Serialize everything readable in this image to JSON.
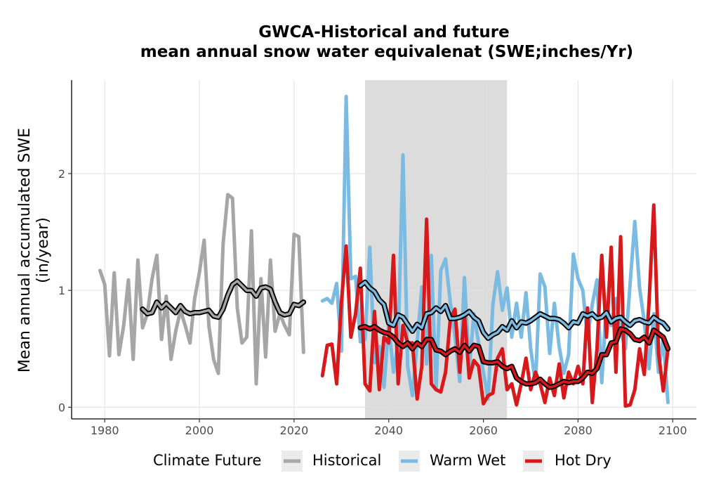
{
  "chart_data": {
    "type": "line",
    "title": [
      "GWCA-Historical and future",
      "mean annual snow water equivalenat (SWE;inches/Yr)"
    ],
    "ylabel": [
      "Mean annual accumulated SWE",
      "(in/year)"
    ],
    "xlabel": "",
    "xlim": [
      1973,
      2105
    ],
    "ylim": [
      -0.1,
      2.8
    ],
    "xticks": [
      1980,
      2000,
      2020,
      2040,
      2060,
      2080,
      2100
    ],
    "yticks": [
      0,
      1,
      2
    ],
    "xtick_labels": [
      "1980",
      "2000",
      "2020",
      "2040",
      "2060",
      "2080",
      "2100"
    ],
    "ytick_labels": [
      "0",
      "1",
      "2"
    ],
    "grid": true,
    "highlight_band": {
      "x": [
        2035,
        2065
      ],
      "color": "#dcdcdc"
    },
    "legend": {
      "title": "Climate Future",
      "position": "bottom",
      "items": [
        {
          "label": "Historical",
          "color": "#a6a6a6"
        },
        {
          "label": "Warm Wet",
          "color": "#7bbbe2"
        },
        {
          "label": "Hot Dry",
          "color": "#d7191c"
        }
      ]
    },
    "series": [
      {
        "name": "Historical",
        "color": "#a6a6a6",
        "x": [
          1979,
          1980,
          1981,
          1982,
          1983,
          1984,
          1985,
          1986,
          1987,
          1988,
          1989,
          1990,
          1991,
          1992,
          1993,
          1994,
          1995,
          1996,
          1997,
          1998,
          1999,
          2000,
          2001,
          2002,
          2003,
          2004,
          2005,
          2006,
          2007,
          2008,
          2009,
          2010,
          2011,
          2012,
          2013,
          2014,
          2015,
          2016,
          2017,
          2018,
          2019,
          2020,
          2021,
          2022
        ],
        "values": [
          1.17,
          1.05,
          0.44,
          1.15,
          0.45,
          0.7,
          1.09,
          0.41,
          1.26,
          0.68,
          0.8,
          1.1,
          1.3,
          0.58,
          0.95,
          0.41,
          0.65,
          0.83,
          0.7,
          0.55,
          0.93,
          1.15,
          1.43,
          0.7,
          0.41,
          0.29,
          1.4,
          1.82,
          1.79,
          0.85,
          0.55,
          0.6,
          1.51,
          0.2,
          1.1,
          0.43,
          1.26,
          0.65,
          0.8,
          0.7,
          0.62,
          1.48,
          1.46,
          0.47
        ],
        "smooth_x": [
          1988,
          1989,
          1990,
          1991,
          1992,
          1993,
          1994,
          1995,
          1996,
          1997,
          1998,
          1999,
          2000,
          2001,
          2002,
          2003,
          2004,
          2005,
          2006,
          2007,
          2008,
          2009,
          2010,
          2011,
          2012,
          2013,
          2014,
          2015,
          2016,
          2017,
          2018,
          2019,
          2020,
          2021,
          2022
        ],
        "smooth_values": [
          0.84,
          0.8,
          0.81,
          0.9,
          0.85,
          0.89,
          0.85,
          0.81,
          0.87,
          0.82,
          0.8,
          0.81,
          0.81,
          0.82,
          0.83,
          0.78,
          0.77,
          0.84,
          0.96,
          1.05,
          1.08,
          1.04,
          1.0,
          1.0,
          0.95,
          1.02,
          1.03,
          1.01,
          0.9,
          0.81,
          0.79,
          0.8,
          0.88,
          0.87,
          0.9
        ]
      },
      {
        "name": "Warm Wet",
        "color": "#7bbbe2",
        "x": [
          2026,
          2027,
          2028,
          2029,
          2030,
          2031,
          2032,
          2033,
          2034,
          2035,
          2036,
          2037,
          2038,
          2039,
          2040,
          2041,
          2042,
          2043,
          2044,
          2045,
          2046,
          2047,
          2048,
          2049,
          2050,
          2051,
          2052,
          2053,
          2054,
          2055,
          2056,
          2057,
          2058,
          2059,
          2060,
          2061,
          2062,
          2063,
          2064,
          2065,
          2066,
          2067,
          2068,
          2069,
          2070,
          2071,
          2072,
          2073,
          2074,
          2075,
          2076,
          2077,
          2078,
          2079,
          2080,
          2081,
          2082,
          2083,
          2084,
          2085,
          2086,
          2087,
          2088,
          2089,
          2090,
          2091,
          2092,
          2093,
          2094,
          2095,
          2096,
          2097,
          2098,
          2099
        ],
        "values": [
          0.91,
          0.93,
          0.89,
          1.06,
          0.48,
          2.66,
          1.1,
          1.12,
          0.56,
          0.58,
          1.37,
          0.38,
          0.52,
          0.17,
          0.71,
          0.3,
          0.55,
          2.16,
          0.35,
          0.1,
          0.55,
          1.03,
          0.37,
          1.3,
          0.15,
          1.17,
          1.27,
          0.9,
          0.61,
          0.22,
          1.11,
          0.33,
          0.8,
          0.55,
          0.3,
          0.07,
          0.88,
          1.16,
          0.83,
          1.02,
          0.6,
          0.89,
          0.6,
          0.98,
          0.5,
          0.2,
          1.14,
          1.03,
          0.46,
          0.89,
          0.52,
          0.29,
          0.45,
          1.31,
          1.1,
          1.0,
          0.6,
          0.88,
          1.09,
          0.21,
          0.9,
          0.7,
          0.93,
          0.65,
          0.5,
          1.06,
          1.59,
          1.02,
          0.73,
          0.33,
          0.8,
          0.3,
          0.6,
          0.04
        ],
        "smooth_x": [
          2034,
          2035,
          2036,
          2037,
          2038,
          2039,
          2040,
          2041,
          2042,
          2043,
          2044,
          2045,
          2046,
          2047,
          2048,
          2049,
          2050,
          2051,
          2052,
          2053,
          2054,
          2055,
          2056,
          2057,
          2058,
          2059,
          2060,
          2061,
          2062,
          2063,
          2064,
          2065,
          2066,
          2067,
          2068,
          2069,
          2070,
          2071,
          2072,
          2073,
          2074,
          2075,
          2076,
          2077,
          2078,
          2079,
          2080,
          2081,
          2082,
          2083,
          2084,
          2085,
          2086,
          2087,
          2088,
          2089,
          2090,
          2091,
          2092,
          2093,
          2094,
          2095,
          2096,
          2097,
          2098,
          2099
        ],
        "smooth_values": [
          1.04,
          1.07,
          1.02,
          0.99,
          0.92,
          0.88,
          0.72,
          0.7,
          0.79,
          0.77,
          0.71,
          0.65,
          0.71,
          0.68,
          0.8,
          0.81,
          0.85,
          0.82,
          0.87,
          0.76,
          0.76,
          0.77,
          0.79,
          0.82,
          0.77,
          0.74,
          0.64,
          0.59,
          0.62,
          0.64,
          0.69,
          0.66,
          0.74,
          0.68,
          0.73,
          0.72,
          0.74,
          0.77,
          0.8,
          0.78,
          0.76,
          0.76,
          0.75,
          0.72,
          0.68,
          0.73,
          0.72,
          0.8,
          0.78,
          0.8,
          0.76,
          0.77,
          0.81,
          0.73,
          0.76,
          0.77,
          0.73,
          0.7,
          0.74,
          0.75,
          0.73,
          0.72,
          0.77,
          0.74,
          0.72,
          0.67
        ]
      },
      {
        "name": "Hot Dry",
        "color": "#d7191c",
        "x": [
          2026,
          2027,
          2028,
          2029,
          2030,
          2031,
          2032,
          2033,
          2034,
          2035,
          2036,
          2037,
          2038,
          2039,
          2040,
          2041,
          2042,
          2043,
          2044,
          2045,
          2046,
          2047,
          2048,
          2049,
          2050,
          2051,
          2052,
          2053,
          2054,
          2055,
          2056,
          2057,
          2058,
          2059,
          2060,
          2061,
          2062,
          2063,
          2064,
          2065,
          2066,
          2067,
          2068,
          2069,
          2070,
          2071,
          2072,
          2073,
          2074,
          2075,
          2076,
          2077,
          2078,
          2079,
          2080,
          2081,
          2082,
          2083,
          2084,
          2085,
          2086,
          2087,
          2088,
          2089,
          2090,
          2091,
          2092,
          2093,
          2094,
          2095,
          2096,
          2097,
          2098,
          2099
        ],
        "values": [
          0.27,
          0.53,
          0.54,
          0.2,
          0.9,
          1.38,
          0.6,
          0.8,
          1.19,
          0.2,
          0.14,
          0.82,
          0.15,
          0.6,
          0.55,
          1.3,
          0.2,
          0.7,
          0.55,
          0.55,
          0.07,
          0.35,
          1.61,
          0.2,
          0.15,
          0.13,
          0.3,
          0.75,
          0.84,
          0.3,
          0.8,
          0.25,
          0.4,
          0.35,
          0.03,
          0.1,
          0.12,
          0.42,
          0.5,
          0.15,
          0.2,
          0.02,
          0.2,
          0.42,
          0.15,
          0.3,
          0.2,
          0.04,
          0.25,
          0.1,
          0.37,
          0.08,
          0.3,
          0.2,
          0.35,
          0.2,
          0.85,
          0.04,
          0.5,
          1.3,
          0.6,
          1.37,
          0.3,
          1.46,
          0.01,
          0.02,
          0.15,
          0.5,
          0.28,
          0.9,
          1.73,
          0.46,
          0.14,
          0.5
        ],
        "smooth_x": [
          2034,
          2035,
          2036,
          2037,
          2038,
          2039,
          2040,
          2041,
          2042,
          2043,
          2044,
          2045,
          2046,
          2047,
          2048,
          2049,
          2050,
          2051,
          2052,
          2053,
          2054,
          2055,
          2056,
          2057,
          2058,
          2059,
          2060,
          2061,
          2062,
          2063,
          2064,
          2065,
          2066,
          2067,
          2068,
          2069,
          2070,
          2071,
          2072,
          2073,
          2074,
          2075,
          2076,
          2077,
          2078,
          2079,
          2080,
          2081,
          2082,
          2083,
          2084,
          2085,
          2086,
          2087,
          2088,
          2089,
          2090,
          2091,
          2092,
          2093,
          2094,
          2095,
          2096,
          2097,
          2098,
          2099
        ],
        "smooth_values": [
          0.68,
          0.69,
          0.67,
          0.69,
          0.66,
          0.64,
          0.63,
          0.6,
          0.55,
          0.52,
          0.55,
          0.5,
          0.55,
          0.52,
          0.58,
          0.58,
          0.49,
          0.48,
          0.45,
          0.48,
          0.5,
          0.47,
          0.53,
          0.48,
          0.53,
          0.52,
          0.39,
          0.38,
          0.38,
          0.39,
          0.35,
          0.33,
          0.35,
          0.25,
          0.22,
          0.2,
          0.2,
          0.21,
          0.24,
          0.2,
          0.17,
          0.18,
          0.2,
          0.22,
          0.21,
          0.22,
          0.22,
          0.25,
          0.3,
          0.29,
          0.33,
          0.45,
          0.45,
          0.55,
          0.56,
          0.67,
          0.66,
          0.63,
          0.58,
          0.57,
          0.6,
          0.55,
          0.66,
          0.63,
          0.6,
          0.5
        ]
      }
    ]
  }
}
